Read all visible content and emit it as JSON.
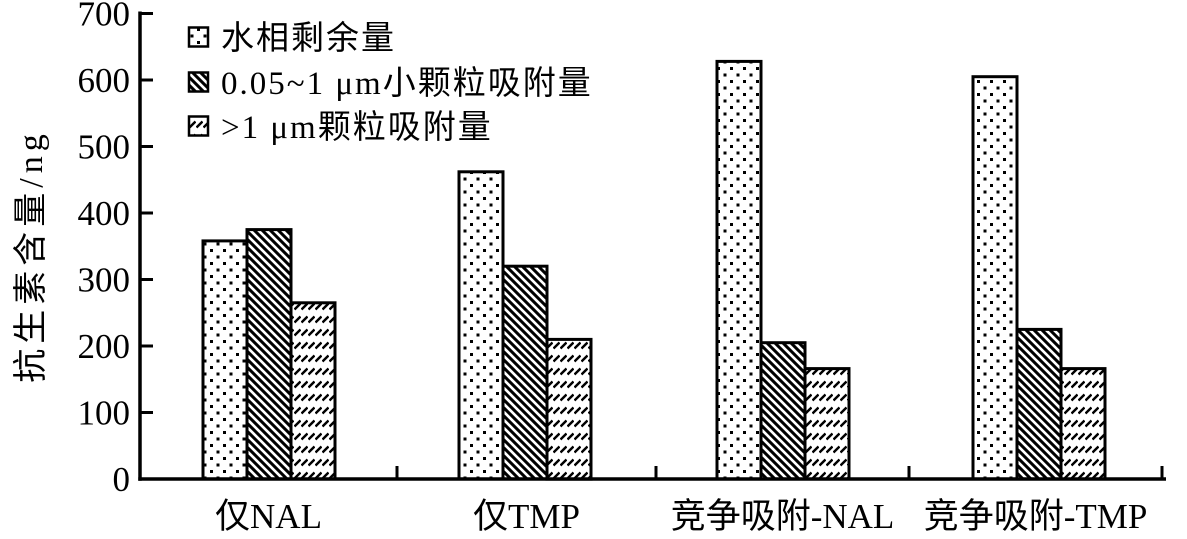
{
  "chart_data": {
    "type": "bar",
    "title": "",
    "xlabel": "",
    "ylabel": "抗生素含量/ng",
    "categories": [
      "仅NAL",
      "仅TMP",
      "竞争吸附-NAL",
      "竞争吸附-TMP"
    ],
    "series": [
      {
        "name": "水相剩余量",
        "pattern": "dots",
        "values": [
          358,
          462,
          628,
          605
        ]
      },
      {
        "name": "0.05~1 μm小颗粒吸附量",
        "pattern": "dense-diagonal",
        "values": [
          375,
          320,
          205,
          225
        ]
      },
      {
        "name": ">1 μm颗粒吸附量",
        "pattern": "light-slash-rows",
        "values": [
          265,
          210,
          166,
          166
        ]
      }
    ],
    "ylim": [
      0,
      700
    ],
    "yticks": [
      0,
      100,
      200,
      300,
      400,
      500,
      600,
      700
    ],
    "legend_position": "top-left",
    "grid": false,
    "colors": {
      "foreground": "#000000",
      "background": "#ffffff",
      "bar_fill": "#ffffff",
      "bar_stroke": "#000000"
    }
  }
}
